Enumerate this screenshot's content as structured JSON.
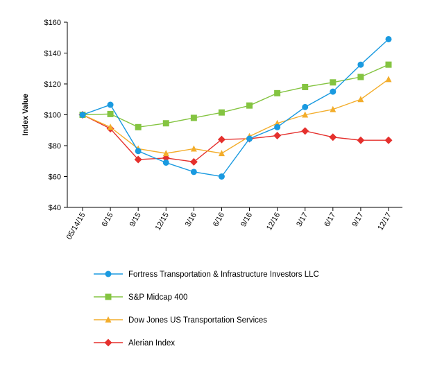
{
  "chart_data": {
    "type": "line",
    "title": "",
    "xlabel": "",
    "ylabel": "Index Value",
    "ylim": [
      40,
      160
    ],
    "yticks": [
      40,
      60,
      80,
      100,
      120,
      140,
      160
    ],
    "ytick_labels": [
      "$40",
      "$60",
      "$80",
      "$100",
      "$120",
      "$140",
      "$160"
    ],
    "categories": [
      "05/14/15",
      "6/15",
      "9/15",
      "12/15",
      "3/16",
      "6/16",
      "9/16",
      "12/16",
      "3/17",
      "6/17",
      "9/17",
      "12/17"
    ],
    "grid": false,
    "legend_position": "bottom",
    "series": [
      {
        "name": "Fortress Transportation & Infrastructure Investors LLC",
        "color": "#1a9ae0",
        "marker": "circle",
        "values": [
          100,
          106.5,
          76.5,
          69,
          63,
          60,
          84.5,
          92,
          105,
          115,
          132.5,
          149
        ]
      },
      {
        "name": "S&P Midcap 400",
        "color": "#84c441",
        "marker": "square",
        "values": [
          100,
          100.5,
          92,
          94.5,
          98,
          101.5,
          106,
          114,
          118,
          121,
          124.5,
          132.5
        ]
      },
      {
        "name": "Dow Jones US Transportation Services",
        "color": "#f3ad2b",
        "marker": "triangle",
        "values": [
          100,
          92,
          78,
          75,
          78,
          75,
          86,
          94.5,
          100,
          103.5,
          110,
          123
        ]
      },
      {
        "name": "Alerian Index",
        "color": "#e5302d",
        "marker": "diamond",
        "values": [
          100,
          91,
          71,
          72,
          69.5,
          84,
          84.5,
          86.5,
          89.5,
          85.5,
          83.5,
          83.5
        ]
      }
    ]
  }
}
